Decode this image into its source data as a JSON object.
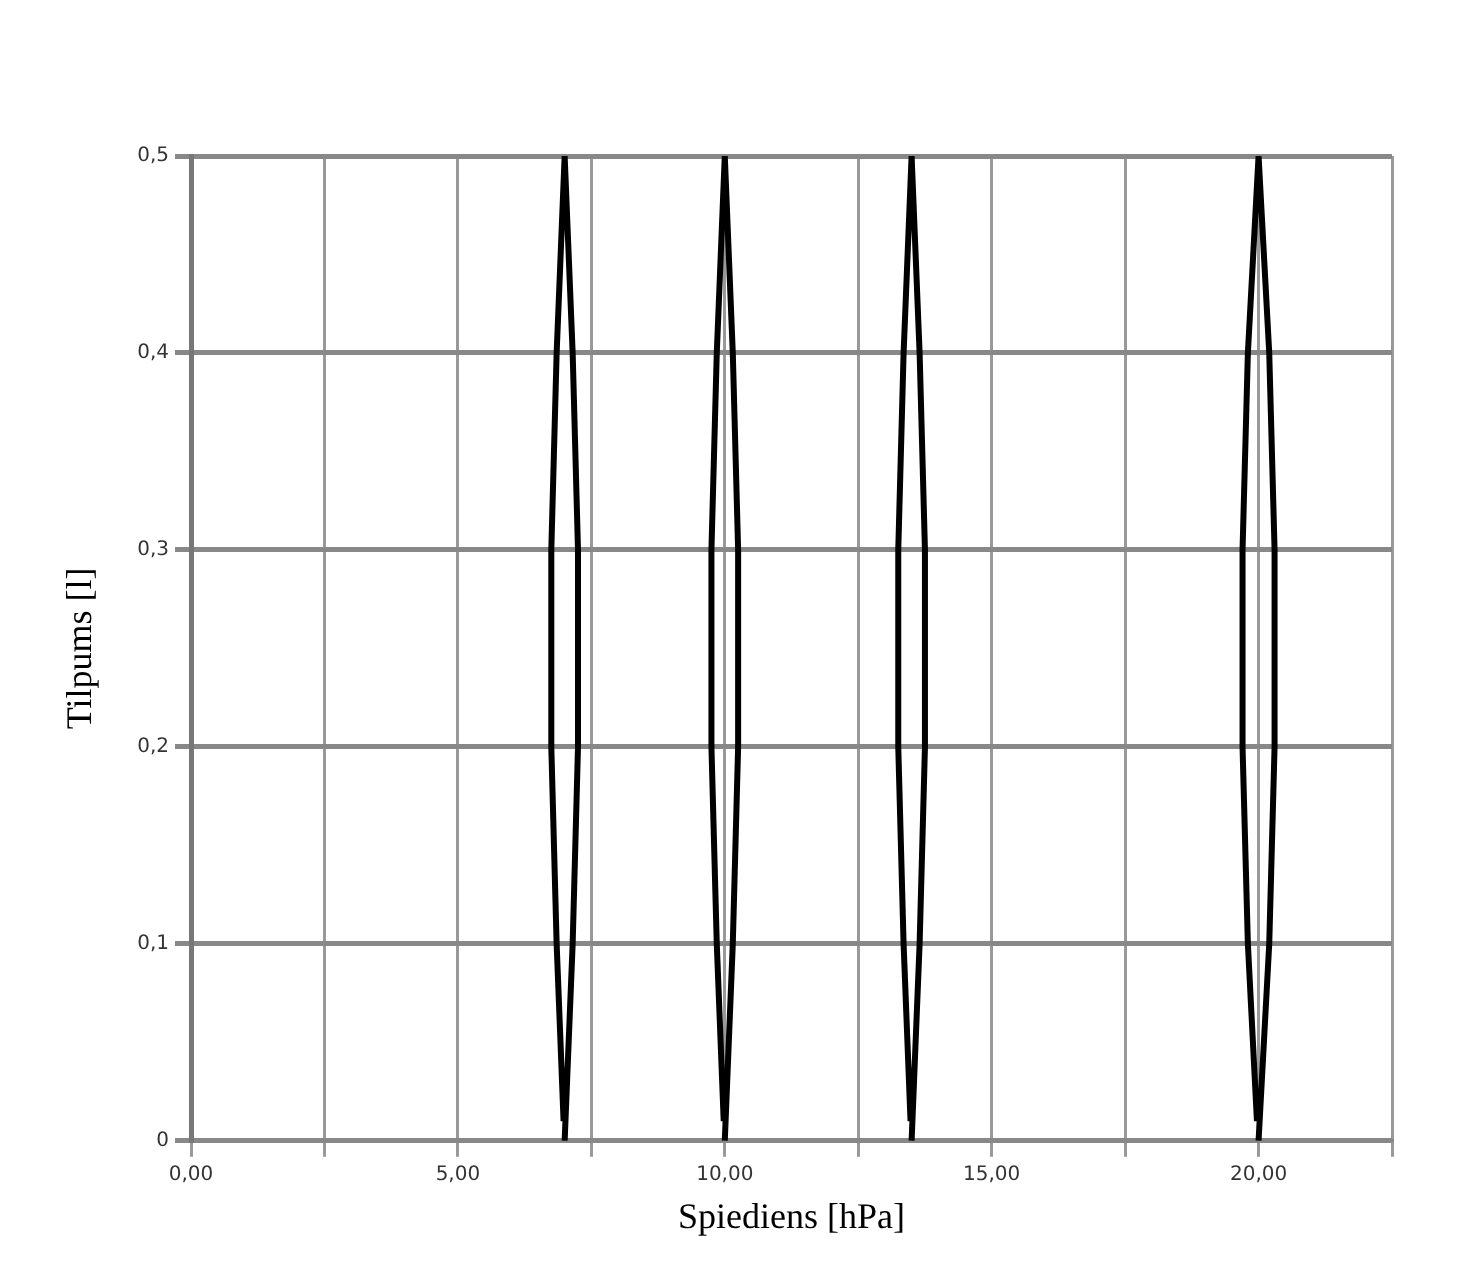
{
  "chart_data": {
    "type": "line",
    "xlabel": "Spiediens [hPa]",
    "ylabel": "Tilpums [l]",
    "series": [
      {
        "color": "#000000",
        "x": [
          7.0,
          7.15,
          7.25,
          7.25,
          7.15,
          7.0,
          6.85,
          6.75,
          6.75,
          6.85,
          6.98
        ],
        "values": [
          0,
          0.1,
          0.2,
          0.3,
          0.4,
          0.5,
          0.4,
          0.3,
          0.2,
          0.1,
          0.01
        ]
      },
      {
        "color": "#000000",
        "x": [
          10.0,
          10.15,
          10.25,
          10.25,
          10.15,
          10.0,
          9.85,
          9.75,
          9.75,
          9.85,
          9.98
        ],
        "values": [
          0,
          0.1,
          0.2,
          0.3,
          0.4,
          0.5,
          0.4,
          0.3,
          0.2,
          0.1,
          0.01
        ]
      },
      {
        "color": "#000000",
        "x": [
          13.5,
          13.65,
          13.75,
          13.75,
          13.65,
          13.5,
          13.35,
          13.25,
          13.25,
          13.35,
          13.48
        ],
        "values": [
          0,
          0.1,
          0.2,
          0.3,
          0.4,
          0.5,
          0.4,
          0.3,
          0.2,
          0.1,
          0.01
        ]
      },
      {
        "color": "#000000",
        "x": [
          20.0,
          20.2,
          20.3,
          20.3,
          20.2,
          20.0,
          19.8,
          19.7,
          19.7,
          19.8,
          19.97
        ],
        "values": [
          0,
          0.1,
          0.2,
          0.3,
          0.4,
          0.5,
          0.4,
          0.3,
          0.2,
          0.1,
          0.01
        ]
      }
    ],
    "xlim": [
      0,
      22.5
    ],
    "xticks": [
      {
        "value": 0,
        "label": "0,00"
      },
      {
        "value": 2.5,
        "label": null
      },
      {
        "value": 5,
        "label": "5,00"
      },
      {
        "value": 7.5,
        "label": null
      },
      {
        "value": 10,
        "label": "10,00"
      },
      {
        "value": 12.5,
        "label": null
      },
      {
        "value": 15,
        "label": "15,00"
      },
      {
        "value": 17.5,
        "label": null
      },
      {
        "value": 20,
        "label": "20,00"
      },
      {
        "value": 22.5,
        "label": null
      }
    ],
    "ylim": [
      0,
      0.5
    ],
    "yticks": [
      0,
      {
        "value": 0.1,
        "label": "0,1"
      },
      {
        "value": 0.2,
        "label": "0,2"
      },
      {
        "value": 0.3,
        "label": "0,3"
      },
      {
        "value": 0.4,
        "label": "0,4"
      },
      {
        "value": 0.5,
        "label": "0,5"
      }
    ],
    "grid": true,
    "legend": false,
    "marker": "none",
    "line_style": "solid"
  }
}
